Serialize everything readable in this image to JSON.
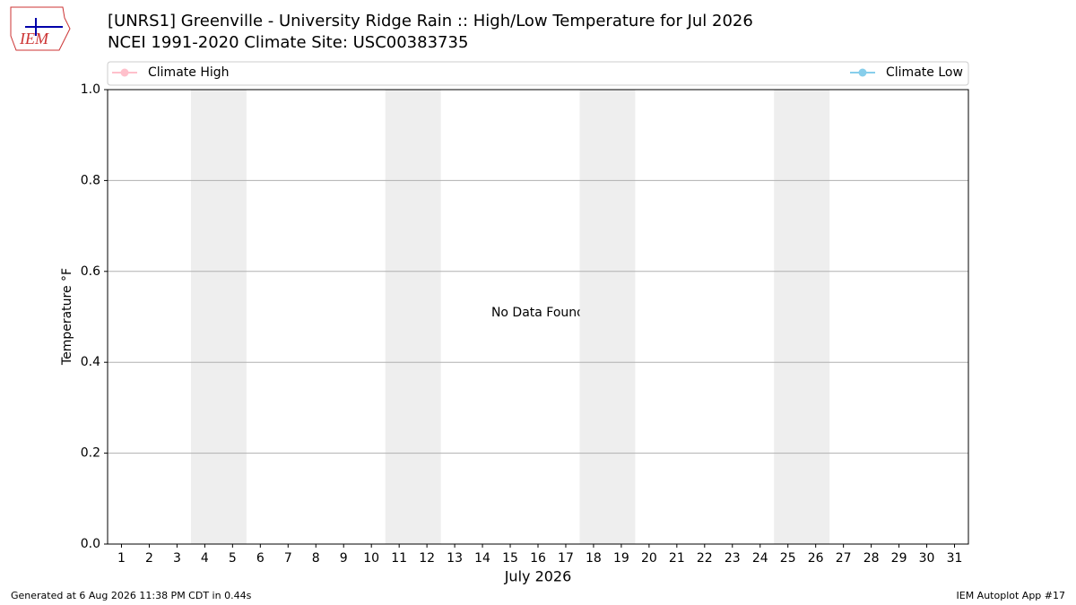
{
  "chart_data": {
    "type": "line",
    "title": "[UNRS1] Greenville - University Ridge Rain :: High/Low Temperature for Jul 2026",
    "subtitle": "NCEI 1991-2020 Climate Site: USC00383735",
    "logo_text": "IEM",
    "x_label": "July 2026",
    "y_label": "Temperature °F",
    "annotation": "No Data Found",
    "footer_left": "Generated at 6 Aug 2026 11:38 PM CDT in 0.44s",
    "footer_right": "IEM Autoplot App #17",
    "x": [
      1,
      2,
      3,
      4,
      5,
      6,
      7,
      8,
      9,
      10,
      11,
      12,
      13,
      14,
      15,
      16,
      17,
      18,
      19,
      20,
      21,
      22,
      23,
      24,
      25,
      26,
      27,
      28,
      29,
      30,
      31
    ],
    "xlim": [
      0.5,
      31.5
    ],
    "xticks": [
      1,
      2,
      3,
      4,
      5,
      6,
      7,
      8,
      9,
      10,
      11,
      12,
      13,
      14,
      15,
      16,
      17,
      18,
      19,
      20,
      21,
      22,
      23,
      24,
      25,
      26,
      27,
      28,
      29,
      30,
      31
    ],
    "ylim": [
      0,
      1
    ],
    "yticks": [
      {
        "value": 0,
        "label": "0.0"
      },
      0.2,
      0.4,
      0.6,
      0.8,
      {
        "value": 1,
        "label": "1.0"
      }
    ],
    "grid": "y",
    "shaded_spans": [
      [
        3.5,
        5.5
      ],
      [
        10.5,
        12.5
      ],
      [
        17.5,
        19.5
      ],
      [
        24.5,
        26.5
      ]
    ],
    "shade_color": "#eeeeee",
    "series": [
      {
        "name": "Climate High",
        "color": "#ffc0cb",
        "values": [
          null,
          null,
          null,
          null,
          null,
          null,
          null,
          null,
          null,
          null,
          null,
          null,
          null,
          null,
          null,
          null,
          null,
          null,
          null,
          null,
          null,
          null,
          null,
          null,
          null,
          null,
          null,
          null,
          null,
          null,
          null
        ]
      },
      {
        "name": "Climate Low",
        "color": "#87ceeb",
        "values": [
          null,
          null,
          null,
          null,
          null,
          null,
          null,
          null,
          null,
          null,
          null,
          null,
          null,
          null,
          null,
          null,
          null,
          null,
          null,
          null,
          null,
          null,
          null,
          null,
          null,
          null,
          null,
          null,
          null,
          null,
          null
        ]
      }
    ]
  }
}
